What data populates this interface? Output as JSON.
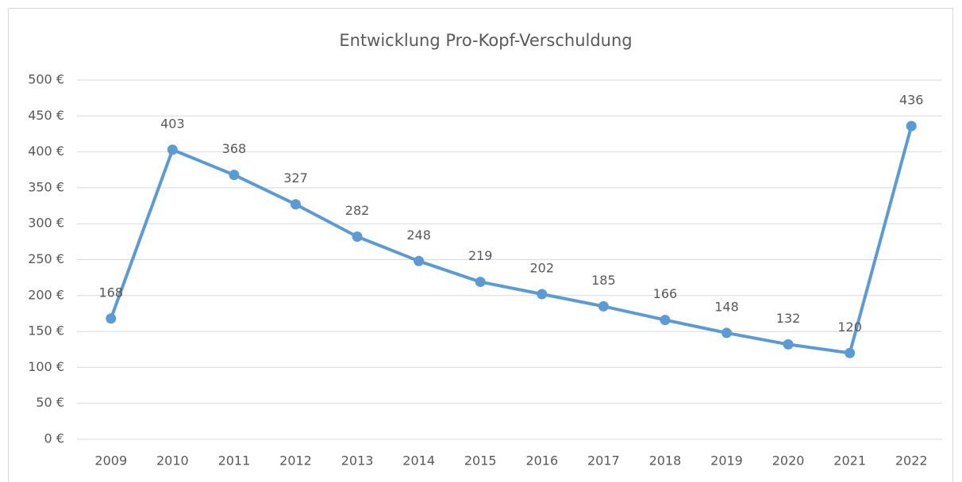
{
  "chart_data": {
    "type": "line",
    "title": "Entwicklung Pro-Kopf-Verschuldung",
    "categories": [
      "2009",
      "2010",
      "2011",
      "2012",
      "2013",
      "2014",
      "2015",
      "2016",
      "2017",
      "2018",
      "2019",
      "2020",
      "2021",
      "2022"
    ],
    "values": [
      168,
      403,
      368,
      327,
      282,
      248,
      219,
      202,
      185,
      166,
      148,
      132,
      120,
      436
    ],
    "color": "#5b9bd5",
    "ylim": [
      0,
      500
    ],
    "yticks": [
      {
        "value": 0,
        "label": "0 €"
      },
      {
        "value": 50,
        "label": "50 €"
      },
      {
        "value": 100,
        "label": "100 €"
      },
      {
        "value": 150,
        "label": "150 €"
      },
      {
        "value": 200,
        "label": "200 €"
      },
      {
        "value": 250,
        "label": "250 €"
      },
      {
        "value": 300,
        "label": "300 €"
      },
      {
        "value": 350,
        "label": "350 €"
      },
      {
        "value": 400,
        "label": "400 €"
      },
      {
        "value": 450,
        "label": "450 €"
      },
      {
        "value": 500,
        "label": "500 €"
      }
    ],
    "grid": true
  }
}
